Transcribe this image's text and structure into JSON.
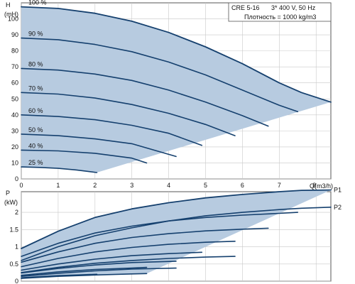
{
  "header": {
    "model": "CRE 5-16",
    "supply": "3* 400 V, 50 Hz",
    "density": "Плотность = 1000 kg/m3"
  },
  "colors": {
    "curve": "#15406e",
    "band": "#b7cbe0",
    "grid": "#c8c8c8",
    "frame": "#555555"
  },
  "chart_data": [
    {
      "type": "line",
      "chart": "head",
      "xlabel": "Q(m3/h)",
      "ylabel_top": "H",
      "ylabel_unit": "(mH)",
      "xlim": [
        0,
        8.4
      ],
      "ylim": [
        0,
        110
      ],
      "xticks": [
        0,
        1,
        2,
        3,
        4,
        5,
        6,
        7,
        8
      ],
      "yticks": [
        0,
        10,
        20,
        30,
        40,
        50,
        60,
        70,
        80,
        90,
        100
      ],
      "grid": true,
      "series": [
        {
          "name": "100 %",
          "x": [
            0,
            1,
            2,
            3,
            4,
            5,
            6,
            7,
            7.6,
            8.4
          ],
          "y": [
            107.5,
            106.5,
            103.5,
            98.5,
            91.5,
            82.5,
            72,
            60,
            54,
            48
          ]
        },
        {
          "name": "90 %",
          "x": [
            0,
            1,
            2,
            3,
            4,
            5,
            6,
            7,
            7.5
          ],
          "y": [
            88,
            87,
            84,
            79.5,
            73,
            65,
            55.5,
            46,
            42
          ]
        },
        {
          "name": "80 %",
          "x": [
            0,
            1,
            2,
            3,
            4,
            5,
            6,
            6.7
          ],
          "y": [
            69,
            68,
            65.5,
            61.5,
            55.5,
            48,
            39.5,
            33
          ]
        },
        {
          "name": "70 %",
          "x": [
            0,
            1,
            2,
            3,
            4,
            5,
            5.8
          ],
          "y": [
            54,
            53,
            50.5,
            46.5,
            41,
            34,
            27
          ]
        },
        {
          "name": "60 %",
          "x": [
            0,
            1,
            2,
            3,
            4,
            4.9
          ],
          "y": [
            40,
            39,
            37,
            33.5,
            28.5,
            21
          ]
        },
        {
          "name": "50 %",
          "x": [
            0,
            1,
            2,
            3,
            4.2
          ],
          "y": [
            28,
            27,
            25,
            22,
            14
          ]
        },
        {
          "name": "40 %",
          "x": [
            0,
            1,
            2,
            3,
            3.4
          ],
          "y": [
            18,
            17.5,
            16,
            13,
            10
          ]
        },
        {
          "name": "25 %",
          "x": [
            0,
            0.5,
            1,
            1.5,
            2.05
          ],
          "y": [
            7.5,
            7.2,
            6.6,
            5.6,
            4
          ]
        }
      ]
    },
    {
      "type": "line",
      "chart": "power",
      "xlabel": "",
      "ylabel_top": "P",
      "ylabel_unit": "(kW)",
      "xlim": [
        0,
        8.4
      ],
      "ylim": [
        0,
        2.6
      ],
      "yticks": [
        0,
        0.5,
        1,
        1.5,
        2
      ],
      "grid": true,
      "series": [
        {
          "name": "P1",
          "x": [
            0,
            1,
            2,
            3,
            4,
            5,
            6,
            7,
            7.6,
            8.4
          ],
          "y": [
            0.95,
            1.45,
            1.85,
            2.1,
            2.28,
            2.42,
            2.52,
            2.6,
            2.64,
            2.65
          ]
        },
        {
          "name": "P2",
          "x": [
            0,
            1,
            2,
            3,
            4,
            5,
            6,
            7,
            7.6,
            8.4
          ],
          "y": [
            0.6,
            1.0,
            1.32,
            1.55,
            1.75,
            1.9,
            2.0,
            2.08,
            2.12,
            2.15
          ]
        },
        {
          "name": "",
          "x": [
            0,
            1,
            2,
            3,
            4,
            5,
            6,
            7,
            7.5
          ],
          "y": [
            0.72,
            1.1,
            1.4,
            1.6,
            1.75,
            1.85,
            1.92,
            1.97,
            2.0
          ]
        },
        {
          "name": "",
          "x": [
            0,
            1,
            2,
            3,
            4,
            5,
            6,
            6.7
          ],
          "y": [
            0.55,
            0.85,
            1.1,
            1.27,
            1.38,
            1.46,
            1.51,
            1.54
          ]
        },
        {
          "name": "",
          "x": [
            0,
            1,
            2,
            3,
            4,
            5,
            5.8
          ],
          "y": [
            0.42,
            0.66,
            0.85,
            0.98,
            1.07,
            1.13,
            1.16
          ]
        },
        {
          "name": "",
          "x": [
            0,
            1,
            2,
            3,
            4,
            4.9
          ],
          "y": [
            0.32,
            0.5,
            0.64,
            0.74,
            0.8,
            0.84
          ]
        },
        {
          "name": "",
          "x": [
            0,
            1,
            2,
            3,
            4.2
          ],
          "y": [
            0.24,
            0.37,
            0.47,
            0.54,
            0.58
          ]
        },
        {
          "name": "",
          "x": [
            0,
            1,
            2,
            3,
            3.4
          ],
          "y": [
            0.17,
            0.27,
            0.34,
            0.38,
            0.4
          ]
        },
        {
          "name": "",
          "x": [
            0,
            0.5,
            1,
            1.5,
            2.05
          ],
          "y": [
            0.1,
            0.13,
            0.16,
            0.18,
            0.2
          ]
        },
        {
          "name": "",
          "x": [
            0,
            1,
            2,
            3,
            4,
            5,
            5.8
          ],
          "y": [
            0.25,
            0.4,
            0.52,
            0.6,
            0.66,
            0.7,
            0.72
          ]
        },
        {
          "name": "",
          "x": [
            0,
            1,
            2,
            3,
            4.2
          ],
          "y": [
            0.14,
            0.23,
            0.3,
            0.35,
            0.38
          ]
        },
        {
          "name": "",
          "x": [
            0,
            1,
            2,
            3,
            3.4
          ],
          "y": [
            0.08,
            0.14,
            0.18,
            0.21,
            0.22
          ]
        }
      ]
    }
  ]
}
